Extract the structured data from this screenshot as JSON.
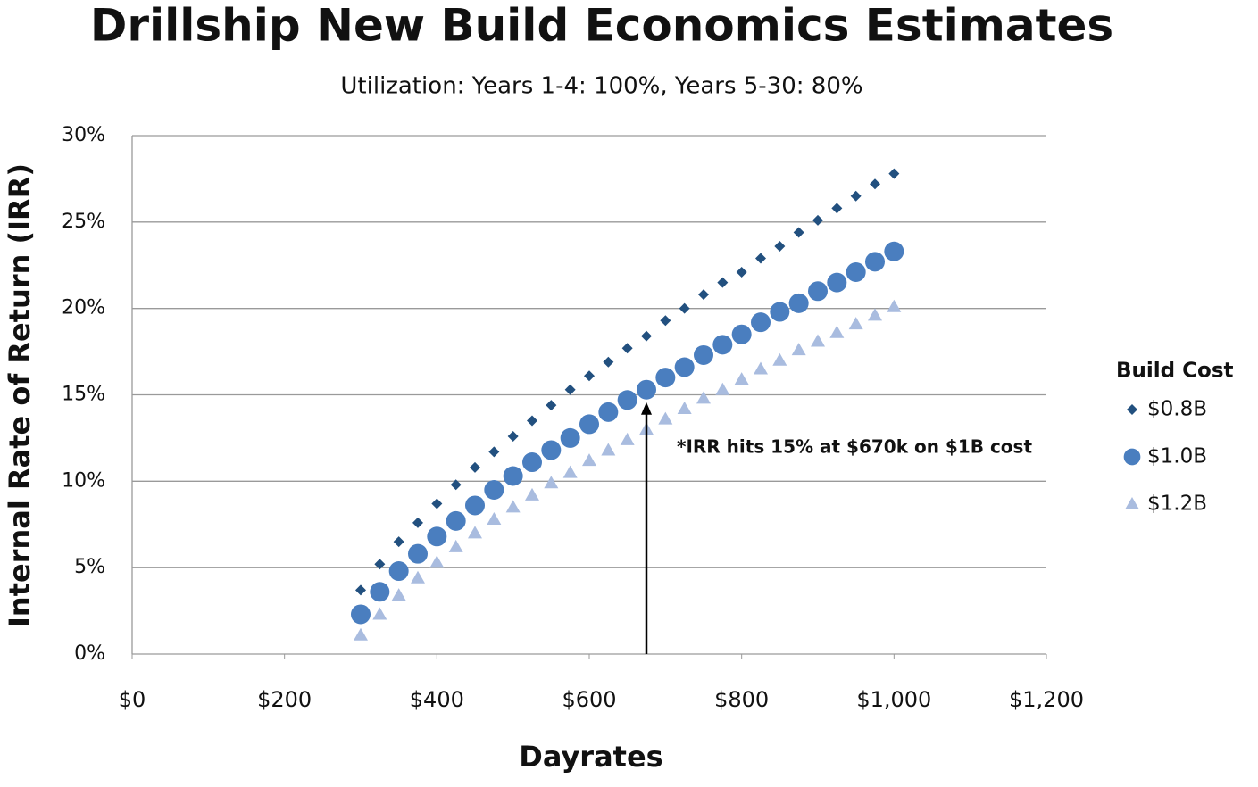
{
  "chart_data": {
    "type": "scatter",
    "title": "Drillship New Build Economics Estimates",
    "subtitle": "Utilization: Years 1-4: 100%, Years 5-30: 80%",
    "x_label": "Dayrates",
    "y_label": "Internal Rate of Return (IRR)",
    "legend_title": "Build Cost",
    "legend_position": "right",
    "grid": true,
    "x": [
      300,
      325,
      350,
      375,
      400,
      425,
      450,
      475,
      500,
      525,
      550,
      575,
      600,
      625,
      650,
      675,
      700,
      725,
      750,
      775,
      800,
      825,
      850,
      875,
      900,
      925,
      950,
      975,
      1000
    ],
    "series": [
      {
        "name": "$0.8B",
        "color": "#22507f",
        "marker": "diamond",
        "values": [
          3.7,
          5.2,
          6.5,
          7.6,
          8.7,
          9.8,
          10.8,
          11.7,
          12.6,
          13.5,
          14.4,
          15.3,
          16.1,
          16.9,
          17.7,
          18.4,
          19.3,
          20.0,
          20.8,
          21.5,
          22.1,
          22.9,
          23.6,
          24.4,
          25.1,
          25.8,
          26.5,
          27.2,
          27.8
        ]
      },
      {
        "name": "$1.0B",
        "color": "#4a7ebf",
        "marker": "circle",
        "values": [
          2.3,
          3.6,
          4.8,
          5.8,
          6.8,
          7.7,
          8.6,
          9.5,
          10.3,
          11.1,
          11.8,
          12.5,
          13.3,
          14.0,
          14.7,
          15.3,
          16.0,
          16.6,
          17.3,
          17.9,
          18.5,
          19.2,
          19.8,
          20.3,
          21.0,
          21.5,
          22.1,
          22.7,
          23.3
        ]
      },
      {
        "name": "$1.2B",
        "color": "#a9bcdf",
        "marker": "triangle",
        "values": [
          1.1,
          2.3,
          3.4,
          4.4,
          5.3,
          6.2,
          7.0,
          7.8,
          8.5,
          9.2,
          9.9,
          10.5,
          11.2,
          11.8,
          12.4,
          13.0,
          13.6,
          14.2,
          14.8,
          15.3,
          15.9,
          16.5,
          17.0,
          17.6,
          18.1,
          18.6,
          19.1,
          19.6,
          20.1
        ]
      }
    ],
    "annotation": {
      "text": "*IRR hits 15% at $670k on $1B cost",
      "x": 675,
      "y": 15.3
    },
    "xlim": [
      0,
      1200
    ],
    "xticks": [
      {
        "value": 0,
        "label": "$0"
      },
      {
        "value": 200,
        "label": "$200"
      },
      {
        "value": 400,
        "label": "$400"
      },
      {
        "value": 600,
        "label": "$600"
      },
      {
        "value": 800,
        "label": "$800"
      },
      {
        "value": 1000,
        "label": "$1,000"
      },
      {
        "value": 1200,
        "label": "$1,200"
      }
    ],
    "ylim": [
      0,
      30
    ],
    "yticks": [
      {
        "value": 0,
        "label": "0%"
      },
      {
        "value": 5,
        "label": "5%"
      },
      {
        "value": 10,
        "label": "10%"
      },
      {
        "value": 15,
        "label": "15%"
      },
      {
        "value": 20,
        "label": "20%"
      },
      {
        "value": 25,
        "label": "25%"
      },
      {
        "value": 30,
        "label": "30%"
      }
    ]
  }
}
